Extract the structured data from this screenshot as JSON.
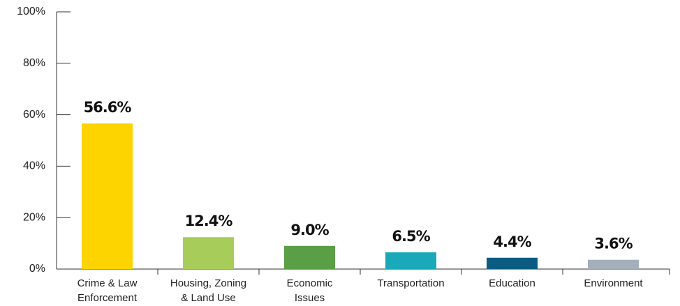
{
  "chart_data": {
    "type": "bar",
    "categories": [
      "Crime & Law\nEnforcement",
      "Housing, Zoning\n& Land Use",
      "Economic\nIssues",
      "Transportation",
      "Education",
      "Environment"
    ],
    "values": [
      56.6,
      12.4,
      9.0,
      6.5,
      4.4,
      3.6
    ],
    "value_labels": [
      "56.6%",
      "12.4%",
      "9.0%",
      "6.5%",
      "4.4%",
      "3.6%"
    ],
    "colors": [
      "#fdd300",
      "#a8cc5a",
      "#5a9e45",
      "#19a9b9",
      "#0c5c82",
      "#a3afb9"
    ],
    "ylim": [
      0,
      100
    ],
    "yticks": [
      {
        "value": 0,
        "label": "0%"
      },
      {
        "value": 20,
        "label": "20%"
      },
      {
        "value": 40,
        "label": "40%"
      },
      {
        "value": 60,
        "label": "60%"
      },
      {
        "value": 80,
        "label": "80%"
      },
      {
        "value": 100,
        "label": "100%"
      }
    ]
  }
}
